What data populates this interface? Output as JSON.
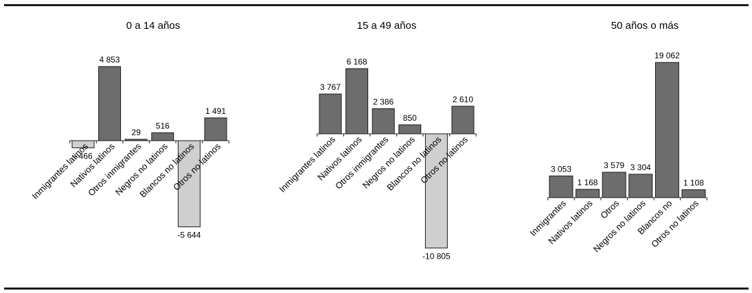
{
  "chart_data": [
    {
      "type": "bar",
      "title": "0 a 14 años",
      "categories": [
        "Inmigrantes latinos",
        "Nativos latinos",
        "Otros inmigrantes",
        "Negros no latinos",
        "Blancos no latinos",
        "Otros no latinos"
      ],
      "values": [
        -466,
        4853,
        29,
        516,
        -5644,
        1491
      ],
      "value_labels": [
        "- 466",
        "4 853",
        "29",
        "516",
        "-5 644",
        "1 491"
      ],
      "colors": {
        "positive": "#6d6d6d",
        "negative": "#cfcfcf"
      },
      "xlabel": "",
      "ylabel": ""
    },
    {
      "type": "bar",
      "title": "15 a 49 años",
      "categories": [
        "Inmigrantes latinos",
        "Nativos latinos",
        "Otros inmigrantes",
        "Negros no latinos",
        "Blancos no latinos",
        "Otros no latinos"
      ],
      "values": [
        3767,
        6168,
        2386,
        850,
        -10805,
        2610
      ],
      "value_labels": [
        "3 767",
        "6 168",
        "2 386",
        "850",
        "-10 805",
        "2 610"
      ],
      "colors": {
        "positive": "#6d6d6d",
        "negative": "#cfcfcf"
      },
      "xlabel": "",
      "ylabel": ""
    },
    {
      "type": "bar",
      "title": "50 años o más",
      "categories": [
        "Inmigrantes",
        "Nativos latinos",
        "Otros",
        "Negros no latinos",
        "Blancos no",
        "Otros no latinos"
      ],
      "values": [
        3053,
        1168,
        3579,
        3304,
        19062,
        1108
      ],
      "value_labels": [
        "3 053",
        "1 168",
        "3 579",
        "3 304",
        "19 062",
        "1 108"
      ],
      "colors": {
        "positive": "#6d6d6d",
        "negative": "#cfcfcf"
      },
      "xlabel": "",
      "ylabel": ""
    }
  ]
}
